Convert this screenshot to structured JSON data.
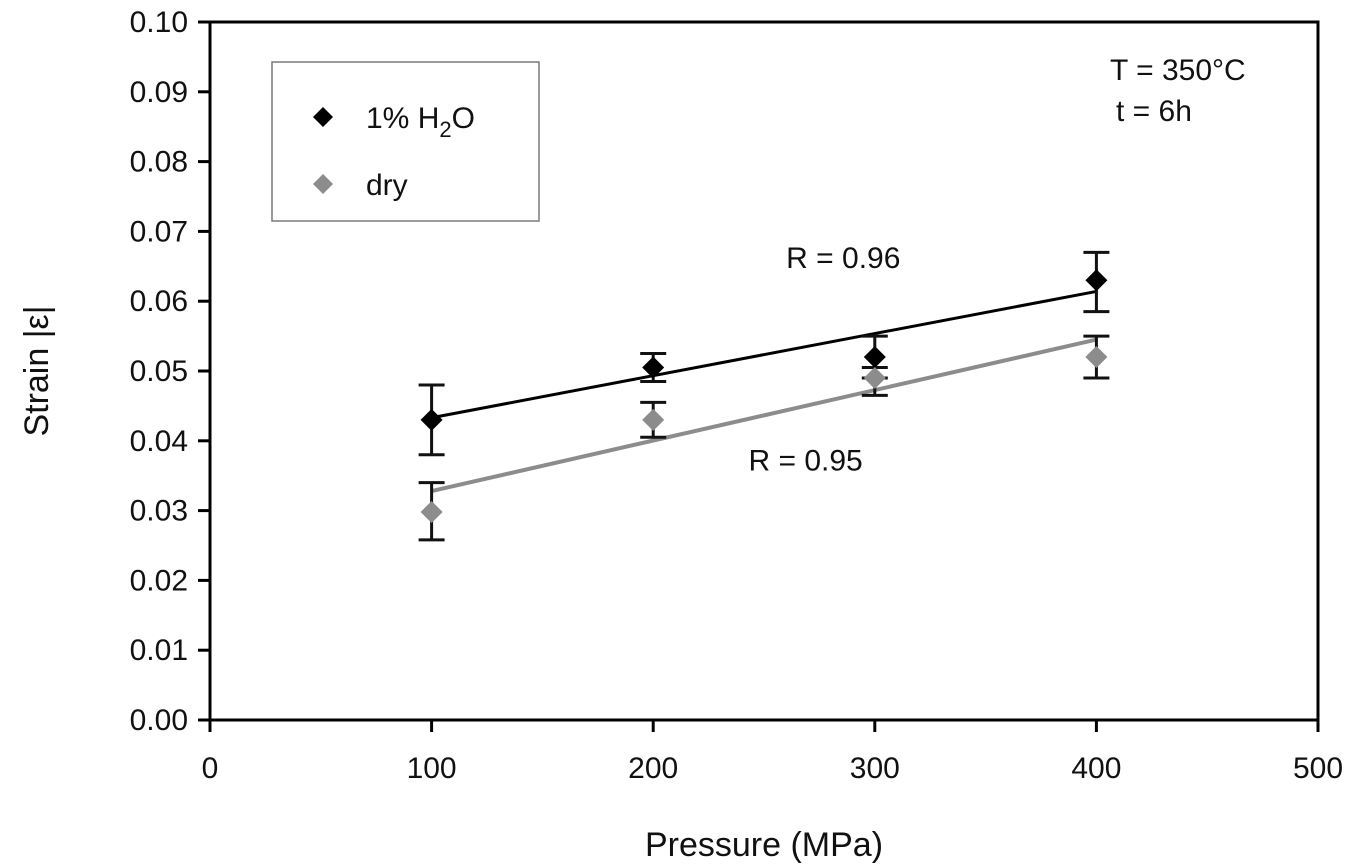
{
  "chart_data": {
    "type": "scatter",
    "xlabel": "Pressure (MPa)",
    "ylabel": "Strain  |ε|",
    "xlim": [
      0,
      500
    ],
    "ylim": [
      0,
      0.1
    ],
    "x_ticks": [
      "0",
      "100",
      "200",
      "300",
      "400",
      "500"
    ],
    "y_ticks": [
      "0.00",
      "0.01",
      "0.02",
      "0.03",
      "0.04",
      "0.05",
      "0.06",
      "0.07",
      "0.08",
      "0.09",
      "0.10"
    ],
    "grid": false,
    "legend_position": "top-left",
    "annotations": {
      "temperature": "T = 350°C",
      "time": "t = 6h"
    },
    "series": [
      {
        "name": "1% H2O",
        "legend_main": "1% H",
        "legend_sub": "2",
        "legend_tail": "O",
        "color": "#000000",
        "x": [
          100,
          200,
          300,
          400
        ],
        "y": [
          0.043,
          0.0505,
          0.052,
          0.063
        ],
        "err_low": [
          0.038,
          0.0485,
          0.049,
          0.0585
        ],
        "err_high": [
          0.048,
          0.0525,
          0.055,
          0.067
        ],
        "fit": {
          "x": [
            100,
            400
          ],
          "y": [
            0.0433,
            0.0614
          ],
          "label": "R = 0.96",
          "label_x": 260,
          "label_y": 0.0662
        }
      },
      {
        "name": "dry",
        "legend_main": "dry",
        "legend_sub": "",
        "legend_tail": "",
        "color": "#8c8c8c",
        "x": [
          100,
          200,
          300,
          400
        ],
        "y": [
          0.0298,
          0.043,
          0.049,
          0.052
        ],
        "err_low": [
          0.0258,
          0.0405,
          0.0465,
          0.049
        ],
        "err_high": [
          0.034,
          0.0455,
          0.0505,
          0.055
        ],
        "fit": {
          "x": [
            100,
            400
          ],
          "y": [
            0.0328,
            0.0545
          ],
          "label": "R = 0.95",
          "label_x": 243,
          "label_y": 0.0372
        }
      }
    ]
  }
}
